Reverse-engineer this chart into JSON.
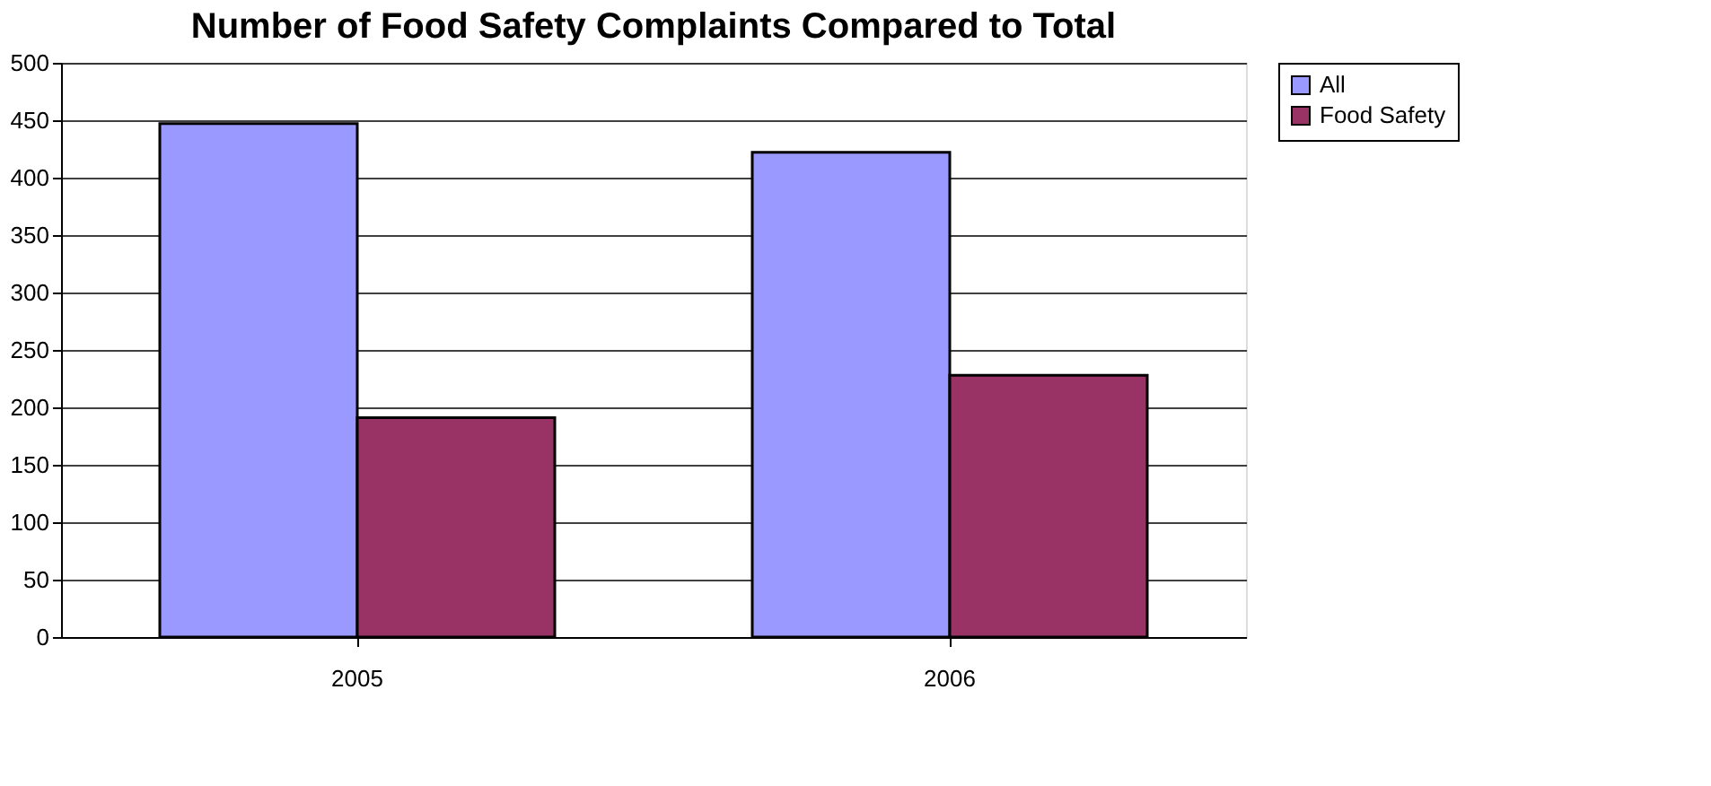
{
  "chart_data": {
    "type": "bar",
    "title": "Number of Food Safety Complaints Compared to Total",
    "categories": [
      "2005",
      "2006"
    ],
    "series": [
      {
        "name": "All",
        "color": "#9999ff",
        "values": [
          447,
          422
        ]
      },
      {
        "name": "Food Safety",
        "color": "#993366",
        "values": [
          191,
          228
        ]
      }
    ],
    "ylim": [
      0,
      500
    ],
    "yticks": [
      0,
      50,
      100,
      150,
      200,
      250,
      300,
      350,
      400,
      450,
      500
    ],
    "grid": "y",
    "legend": "right"
  }
}
